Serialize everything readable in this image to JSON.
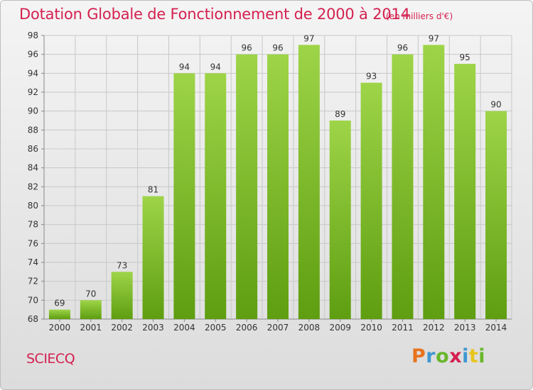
{
  "header": {
    "title": "Dotation Globale de Fonctionnement de 2000 à 2014",
    "unit": "(en milliers d'€)"
  },
  "footer": {
    "commune": "SCIECQ",
    "logo": "Proxiti"
  },
  "colors": {
    "title": "#d4204f",
    "bar_top": "#9ed448",
    "bar_bottom": "#5e9e10",
    "grid": "#c8c8c8"
  },
  "chart_data": {
    "type": "bar",
    "title": "Dotation Globale de Fonctionnement de 2000 à 2014",
    "xlabel": "",
    "ylabel": "",
    "categories": [
      "2000",
      "2001",
      "2002",
      "2003",
      "2004",
      "2005",
      "2006",
      "2007",
      "2008",
      "2009",
      "2010",
      "2011",
      "2012",
      "2013",
      "2014"
    ],
    "values": [
      69,
      70,
      73,
      81,
      94,
      94,
      96,
      96,
      97,
      89,
      93,
      96,
      97,
      95,
      90
    ],
    "ylim": [
      68,
      98
    ],
    "yticks": [
      68,
      70,
      72,
      74,
      76,
      78,
      80,
      82,
      84,
      86,
      88,
      90,
      92,
      94,
      96,
      98
    ],
    "grid": true,
    "data_labels": true
  }
}
